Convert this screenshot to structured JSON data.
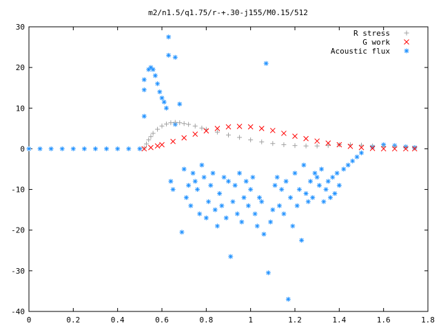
{
  "chart_data": {
    "type": "scatter",
    "title": "m2/n1.5/q1.75/r-+.30-j155/M0.15/512",
    "xlabel": "",
    "ylabel": "",
    "xlim": [
      0,
      1.8
    ],
    "ylim": [
      -40,
      30
    ],
    "x_ticks": [
      0,
      0.2,
      0.4,
      0.6,
      0.8,
      1,
      1.2,
      1.4,
      1.6,
      1.8
    ],
    "x_tick_labels": [
      "0",
      "0.2",
      "0.4",
      "0.6",
      "0.8",
      "1",
      "1.2",
      "1.4",
      "1.6",
      "1.8"
    ],
    "y_ticks": [
      -40,
      -30,
      -20,
      -10,
      0,
      10,
      20,
      30
    ],
    "y_tick_labels": [
      "-40",
      "-30",
      "-20",
      "-10",
      "0",
      "10",
      "20",
      "30"
    ],
    "grid": false,
    "legend_position": "top-right",
    "series": [
      {
        "name": "R stress",
        "marker": "plus",
        "color": "#a0a0a0",
        "x": [
          0.52,
          0.53,
          0.54,
          0.55,
          0.56,
          0.58,
          0.6,
          0.62,
          0.64,
          0.66,
          0.68,
          0.7,
          0.72,
          0.75,
          0.78,
          0.8,
          0.85,
          0.9,
          0.95,
          1.0,
          1.05,
          1.1,
          1.15,
          1.2,
          1.25,
          1.3,
          1.35,
          1.4,
          1.45,
          1.5,
          1.55,
          1.6,
          1.65,
          1.7,
          1.74
        ],
        "y": [
          0.2,
          1.2,
          2.2,
          3.0,
          3.8,
          4.8,
          5.6,
          6.1,
          6.4,
          6.5,
          6.4,
          6.2,
          6.0,
          5.6,
          5.1,
          4.8,
          4.1,
          3.4,
          2.8,
          2.2,
          1.7,
          1.3,
          1.0,
          0.8,
          0.7,
          0.7,
          0.8,
          1.0,
          1.0,
          0.9,
          0.7,
          0.5,
          0.4,
          0.3,
          0.2
        ]
      },
      {
        "name": "G work",
        "marker": "cross",
        "color": "#ff0000",
        "x": [
          0.52,
          0.55,
          0.58,
          0.6,
          0.65,
          0.7,
          0.75,
          0.8,
          0.85,
          0.9,
          0.95,
          1.0,
          1.05,
          1.1,
          1.15,
          1.2,
          1.25,
          1.3,
          1.35,
          1.4,
          1.45,
          1.5,
          1.55,
          1.6,
          1.65,
          1.7,
          1.74
        ],
        "y": [
          0.0,
          0.3,
          0.7,
          1.0,
          1.8,
          2.7,
          3.6,
          4.4,
          5.0,
          5.4,
          5.5,
          5.4,
          5.0,
          4.5,
          3.8,
          3.1,
          2.5,
          1.9,
          1.4,
          1.0,
          0.6,
          0.3,
          0.1,
          0.0,
          0.0,
          0.0,
          0.0
        ]
      },
      {
        "name": "Acoustic flux",
        "marker": "star",
        "color": "#1e90ff",
        "x": [
          0.0,
          0.05,
          0.1,
          0.15,
          0.2,
          0.25,
          0.3,
          0.35,
          0.4,
          0.45,
          0.5,
          0.52,
          0.52,
          0.52,
          0.54,
          0.55,
          0.56,
          0.57,
          0.58,
          0.59,
          0.6,
          0.61,
          0.62,
          0.63,
          0.63,
          0.64,
          0.65,
          0.66,
          0.66,
          0.68,
          0.69,
          0.7,
          0.71,
          0.72,
          0.73,
          0.74,
          0.75,
          0.76,
          0.77,
          0.78,
          0.79,
          0.8,
          0.81,
          0.82,
          0.83,
          0.84,
          0.85,
          0.86,
          0.87,
          0.88,
          0.89,
          0.9,
          0.91,
          0.92,
          0.93,
          0.94,
          0.95,
          0.96,
          0.97,
          0.98,
          0.99,
          1.0,
          1.01,
          1.02,
          1.03,
          1.04,
          1.05,
          1.06,
          1.07,
          1.08,
          1.09,
          1.1,
          1.11,
          1.12,
          1.13,
          1.14,
          1.15,
          1.16,
          1.17,
          1.18,
          1.19,
          1.2,
          1.21,
          1.22,
          1.23,
          1.24,
          1.25,
          1.26,
          1.27,
          1.28,
          1.29,
          1.3,
          1.31,
          1.32,
          1.33,
          1.34,
          1.35,
          1.36,
          1.37,
          1.38,
          1.39,
          1.4,
          1.42,
          1.44,
          1.46,
          1.48,
          1.5,
          1.55,
          1.6,
          1.65,
          1.7,
          1.74
        ],
        "y": [
          0,
          0,
          0,
          0,
          0,
          0,
          0,
          0,
          0,
          0,
          0,
          8,
          14.5,
          17,
          19.5,
          20,
          19.5,
          18,
          16,
          14,
          12.5,
          11.5,
          10,
          27.5,
          23,
          -8,
          -10,
          6,
          22.5,
          11,
          -20.5,
          -5,
          -12,
          -9,
          -14,
          -6,
          -8,
          -10,
          -16,
          -4,
          -7,
          -17,
          -13,
          -9,
          -6,
          -15,
          -19,
          -11,
          -14,
          -7,
          -17,
          -8,
          -26.5,
          -13,
          -9,
          -16,
          -6,
          -18,
          -12,
          -8,
          -14,
          -10,
          -7,
          -16,
          -19,
          -12,
          -13,
          -21,
          21,
          -30.5,
          -18,
          -15,
          -9,
          -7,
          -14,
          -10,
          -16,
          -8,
          -37,
          -12,
          -19,
          -6,
          -14,
          -10,
          -22.5,
          -4,
          -11,
          -13,
          -8,
          -12,
          -6,
          -7,
          -9,
          -5,
          -13,
          -10,
          -8,
          -12,
          -7,
          -11,
          -6,
          -9,
          -5,
          -4,
          -3,
          -2,
          -1,
          0.5,
          1,
          0.8,
          0.5,
          0.3
        ]
      }
    ]
  }
}
